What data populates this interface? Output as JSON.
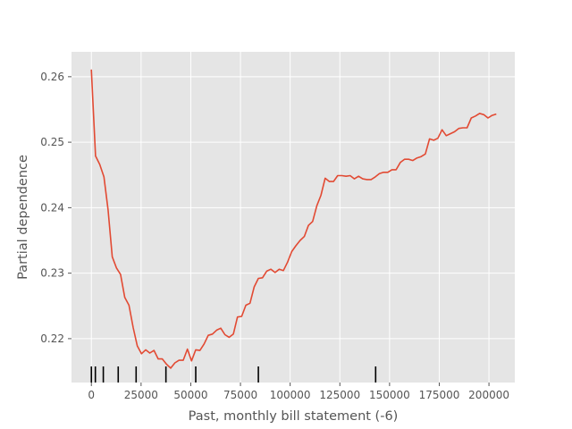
{
  "chart_data": {
    "type": "line",
    "xlabel": "Past, monthly bill statement (-6)",
    "ylabel": "Partial dependence",
    "xlim": [
      -10000,
      213000
    ],
    "ylim": [
      0.2133,
      0.2638
    ],
    "grid": true,
    "x_ticks": [
      {
        "value": 0,
        "label": "0"
      },
      {
        "value": 25000,
        "label": "25000"
      },
      {
        "value": 50000,
        "label": "50000"
      },
      {
        "value": 75000,
        "label": "75000"
      },
      {
        "value": 100000,
        "label": "100000"
      },
      {
        "value": 125000,
        "label": "125000"
      },
      {
        "value": 150000,
        "label": "150000"
      },
      {
        "value": 175000,
        "label": "175000"
      },
      {
        "value": 200000,
        "label": "200000"
      }
    ],
    "y_ticks": [
      {
        "value": 0.22,
        "label": "0.22"
      },
      {
        "value": 0.23,
        "label": "0.23"
      },
      {
        "value": 0.24,
        "label": "0.24"
      },
      {
        "value": 0.25,
        "label": "0.25"
      },
      {
        "value": 0.26,
        "label": "0.26"
      }
    ],
    "series": [
      {
        "color": "#E24A33",
        "x": [
          0,
          2100,
          4200,
          6300,
          8400,
          10500,
          12600,
          14700,
          16800,
          18900,
          21000,
          23100,
          25200,
          27300,
          29400,
          31500,
          33600,
          35700,
          37800,
          39900,
          42000,
          44100,
          46200,
          48300,
          50400,
          52500,
          54600,
          56700,
          58800,
          60900,
          63000,
          65100,
          67200,
          69300,
          71400,
          73500,
          75600,
          77700,
          79800,
          81900,
          84000,
          86100,
          88200,
          90300,
          92400,
          94500,
          96600,
          98700,
          100800,
          102900,
          105000,
          107100,
          109200,
          111300,
          113400,
          115500,
          117600,
          119700,
          121800,
          123900,
          126000,
          128100,
          130200,
          132300,
          134400,
          136500,
          138600,
          140700,
          142800,
          144900,
          147000,
          149100,
          151200,
          153300,
          155400,
          157500,
          159600,
          161700,
          163800,
          165900,
          168000,
          170100,
          172200,
          174300,
          176400,
          178500,
          180600,
          182700,
          184800,
          186900,
          189000,
          191100,
          193200,
          195300,
          197400,
          199500,
          201600,
          203700
        ],
        "y": [
          0.2611,
          0.2479,
          0.2466,
          0.2447,
          0.2397,
          0.2325,
          0.2308,
          0.2298,
          0.2263,
          0.2251,
          0.2217,
          0.2189,
          0.2177,
          0.2183,
          0.2178,
          0.2182,
          0.2169,
          0.2169,
          0.2161,
          0.2155,
          0.2163,
          0.2167,
          0.2167,
          0.2184,
          0.2166,
          0.2183,
          0.2182,
          0.2192,
          0.2205,
          0.2207,
          0.2213,
          0.2216,
          0.2206,
          0.2202,
          0.2207,
          0.2233,
          0.2234,
          0.2251,
          0.2254,
          0.2279,
          0.2292,
          0.2293,
          0.2303,
          0.2306,
          0.2301,
          0.2306,
          0.2304,
          0.2317,
          0.2333,
          0.2342,
          0.235,
          0.2356,
          0.2373,
          0.2379,
          0.2403,
          0.2419,
          0.2445,
          0.244,
          0.244,
          0.2449,
          0.2449,
          0.2448,
          0.2449,
          0.2444,
          0.2448,
          0.2444,
          0.2443,
          0.2443,
          0.2447,
          0.2452,
          0.2454,
          0.2454,
          0.2458,
          0.2458,
          0.2469,
          0.2474,
          0.2474,
          0.2472,
          0.2476,
          0.2478,
          0.2482,
          0.2505,
          0.2503,
          0.2506,
          0.2519,
          0.251,
          0.2513,
          0.2516,
          0.2521,
          0.2522,
          0.2522,
          0.2537,
          0.254,
          0.2544,
          0.2542,
          0.2537,
          0.2541,
          0.2543
        ]
      }
    ],
    "rug_x": [
      0,
      2000,
      6000,
      13500,
      22500,
      37500,
      52500,
      84000,
      143000
    ]
  }
}
